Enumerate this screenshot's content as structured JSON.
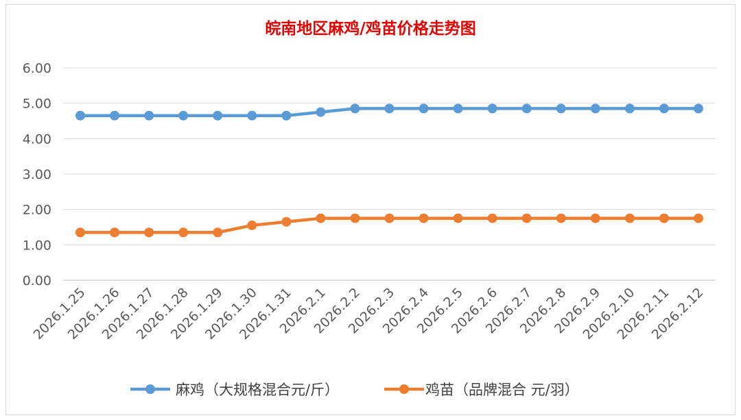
{
  "chart_data": {
    "type": "line",
    "title": "皖南地区麻鸡/鸡苗价格走势图",
    "categories": [
      "2026.1.25",
      "2026.1.26",
      "2026.1.27",
      "2026.1.28",
      "2026.1.29",
      "2026.1.30",
      "2026.1.31",
      "2026.2.1",
      "2026.2.2",
      "2026.2.3",
      "2026.2.4",
      "2026.2.5",
      "2026.2.6",
      "2026.2.7",
      "2026.2.8",
      "2026.2.9",
      "2026.2.10",
      "2026.2.11",
      "2026.2.12"
    ],
    "y_ticks": [
      "0.00",
      "1.00",
      "2.00",
      "3.00",
      "4.00",
      "5.00",
      "6.00"
    ],
    "ylim": [
      0,
      6
    ],
    "grid": true,
    "legend_position": "bottom",
    "series": [
      {
        "name": "麻鸡（大规格混合元/斤）",
        "color": "#5b9bd5",
        "values": [
          4.65,
          4.65,
          4.65,
          4.65,
          4.65,
          4.65,
          4.65,
          4.75,
          4.85,
          4.85,
          4.85,
          4.85,
          4.85,
          4.85,
          4.85,
          4.85,
          4.85,
          4.85,
          4.85
        ]
      },
      {
        "name": "鸡苗（品牌混合 元/羽）",
        "color": "#ed7d31",
        "values": [
          1.35,
          1.35,
          1.35,
          1.35,
          1.35,
          1.55,
          1.65,
          1.75,
          1.75,
          1.75,
          1.75,
          1.75,
          1.75,
          1.75,
          1.75,
          1.75,
          1.75,
          1.75,
          1.75
        ]
      }
    ]
  }
}
